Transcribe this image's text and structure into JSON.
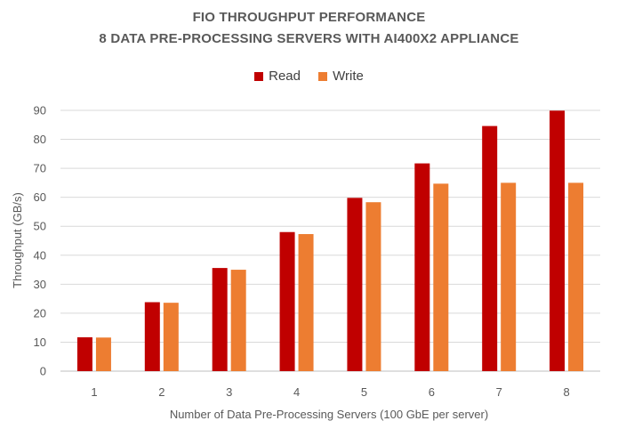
{
  "chart_data": {
    "type": "bar",
    "title": "FIO THROUGHPUT PERFORMANCE",
    "subtitle": "8 DATA PRE-PROCESSING SERVERS WITH AI400X2 APPLIANCE",
    "xlabel": "Number of Data Pre-Processing Servers (100 GbE per server)",
    "ylabel": "Throughput (GB/s)",
    "categories": [
      "1",
      "2",
      "3",
      "4",
      "5",
      "6",
      "7",
      "8"
    ],
    "series": [
      {
        "name": "Read",
        "color": "#c00000",
        "values": [
          11.7,
          23.8,
          35.6,
          48.0,
          59.8,
          71.7,
          84.6,
          89.9
        ]
      },
      {
        "name": "Write",
        "color": "#ed7d31",
        "values": [
          11.6,
          23.6,
          35.0,
          47.3,
          58.3,
          64.7,
          65.0,
          65.0
        ]
      }
    ],
    "ylim": [
      0,
      90
    ],
    "yticks": [
      0,
      10,
      20,
      30,
      40,
      50,
      60,
      70,
      80,
      90
    ],
    "grid": true,
    "legend_position": "top"
  }
}
